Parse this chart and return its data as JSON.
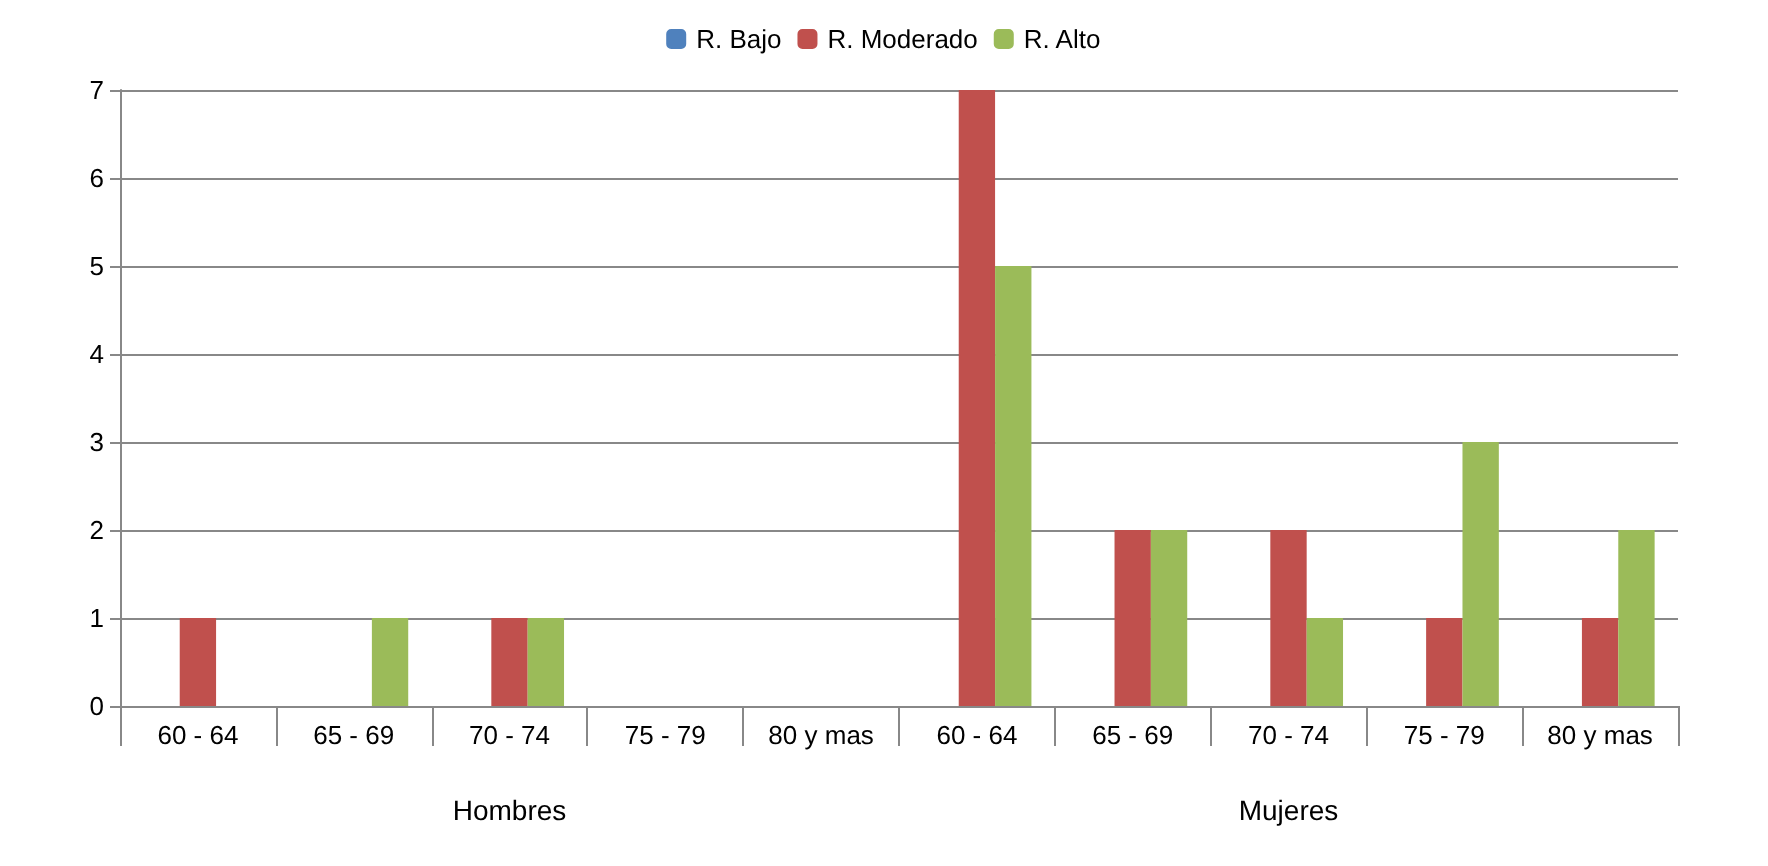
{
  "chart_data": {
    "type": "bar",
    "categories": [
      "60 - 64",
      "65 - 69",
      "70 - 74",
      "75 - 79",
      "80 y mas",
      "60 - 64",
      "65 - 69",
      "70 - 74",
      "75 - 79",
      "80 y mas"
    ],
    "series": [
      {
        "name": "R. Bajo",
        "color": "#4f81bd",
        "values": [
          0,
          0,
          0,
          0,
          0,
          0,
          0,
          0,
          0,
          0
        ]
      },
      {
        "name": "R. Moderado",
        "color": "#c0504d",
        "values": [
          1,
          0,
          1,
          0,
          0,
          7,
          2,
          2,
          1,
          1
        ]
      },
      {
        "name": "R. Alto",
        "color": "#9bbb59",
        "values": [
          0,
          1,
          1,
          0,
          0,
          5,
          2,
          1,
          3,
          2
        ]
      }
    ],
    "annotations": [
      "Hombres",
      "Mujeres"
    ],
    "ylim": [
      0,
      7
    ],
    "yticks": [
      0,
      1,
      2,
      3,
      4,
      5,
      6,
      7
    ],
    "grid": "y",
    "legend": "top"
  }
}
